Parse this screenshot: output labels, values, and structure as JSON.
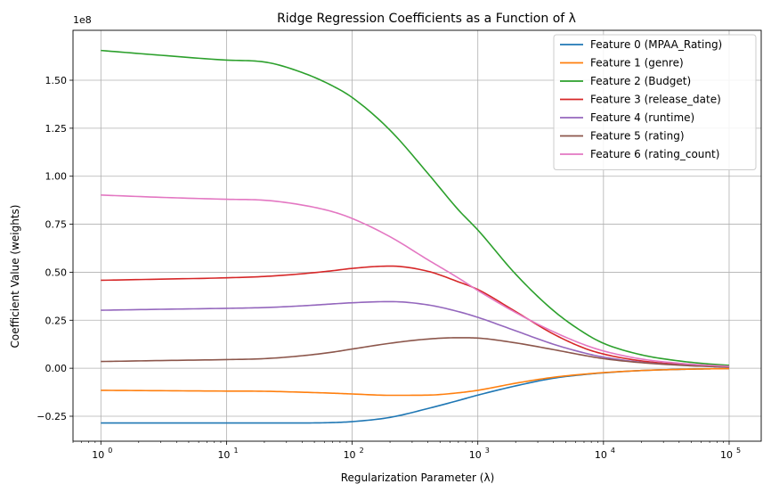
{
  "chart_data": {
    "type": "line",
    "title": "Ridge Regression Coefficients as a Function of λ",
    "xlabel": "Regularization Parameter (λ)",
    "ylabel": "Coefficient Value (weights)",
    "xscale": "log",
    "xlim": [
      0.6,
      180000
    ],
    "ylim": [
      -38000000,
      176000000
    ],
    "y_offset_text": "1e8",
    "y_ticks": [
      -25000000,
      0,
      25000000,
      50000000,
      75000000,
      100000000,
      125000000,
      150000000
    ],
    "y_tick_labels": [
      "−0.25",
      "0.00",
      "0.25",
      "0.50",
      "0.75",
      "1.00",
      "1.25",
      "1.50"
    ],
    "x_ticks": [
      1,
      10,
      100,
      1000,
      10000,
      100000
    ],
    "x_tick_labels": [
      [
        "10",
        "0"
      ],
      [
        "10",
        "1"
      ],
      [
        "10",
        "2"
      ],
      [
        "10",
        "3"
      ],
      [
        "10",
        "4"
      ],
      [
        "10",
        "5"
      ]
    ],
    "grid": true,
    "legend_position": "top-right",
    "x": [
      1,
      3,
      10,
      20,
      40,
      70,
      100,
      200,
      400,
      700,
      1000,
      2000,
      4000,
      7000,
      10000,
      20000,
      40000,
      70000,
      100000
    ],
    "series": [
      {
        "name": "Feature 0 (MPAA_Rating)",
        "color": "#1f77b4",
        "values": [
          -28500000,
          -28500000,
          -28500000,
          -28500000,
          -28500000,
          -28300000,
          -27800000,
          -25600000,
          -21000000,
          -16800000,
          -14000000,
          -9200000,
          -5200000,
          -3300000,
          -2400000,
          -1200000,
          -600000,
          -300000,
          -200000
        ]
      },
      {
        "name": "Feature 1 (genre)",
        "color": "#ff7f0e",
        "values": [
          -11500000,
          -11700000,
          -11900000,
          -12000000,
          -12500000,
          -13000000,
          -13400000,
          -14100000,
          -14000000,
          -12800000,
          -11500000,
          -7800000,
          -4700000,
          -3100000,
          -2300000,
          -1200000,
          -600000,
          -300000,
          -200000
        ]
      },
      {
        "name": "Feature 2 (Budget)",
        "color": "#2ca02c",
        "values": [
          165500000,
          163000000,
          160500000,
          159500000,
          154000000,
          147000000,
          141000000,
          124000000,
          101500000,
          82500000,
          72000000,
          49000000,
          30000000,
          18500000,
          13000000,
          7000000,
          3800000,
          2200000,
          1500000
        ]
      },
      {
        "name": "Feature 3 (release_date)",
        "color": "#d62728",
        "values": [
          45800000,
          46400000,
          47100000,
          47800000,
          49200000,
          50800000,
          52000000,
          53200000,
          50500000,
          45000000,
          41000000,
          29500000,
          17800000,
          10500000,
          7400000,
          3800000,
          2000000,
          1100000,
          700000
        ]
      },
      {
        "name": "Feature 4 (runtime)",
        "color": "#9467bd",
        "values": [
          30200000,
          30700000,
          31200000,
          31600000,
          32500000,
          33500000,
          34100000,
          34700000,
          33000000,
          29500000,
          26500000,
          19500000,
          12500000,
          8000000,
          5800000,
          3100000,
          1700000,
          1000000,
          600000
        ]
      },
      {
        "name": "Feature 5 (rating)",
        "color": "#8c564b",
        "values": [
          3500000,
          4000000,
          4500000,
          5000000,
          6500000,
          8400000,
          10000000,
          13000000,
          15200000,
          15900000,
          15700000,
          13200000,
          9700000,
          6700000,
          5000000,
          2900000,
          1600000,
          900000,
          600000
        ]
      },
      {
        "name": "Feature 6 (rating_count)",
        "color": "#e377c2",
        "values": [
          90200000,
          89000000,
          88000000,
          87500000,
          85000000,
          81500000,
          78000000,
          68500000,
          56500000,
          47000000,
          40500000,
          29000000,
          19000000,
          12300000,
          9000000,
          4800000,
          2600000,
          1500000,
          1000000
        ]
      }
    ]
  }
}
